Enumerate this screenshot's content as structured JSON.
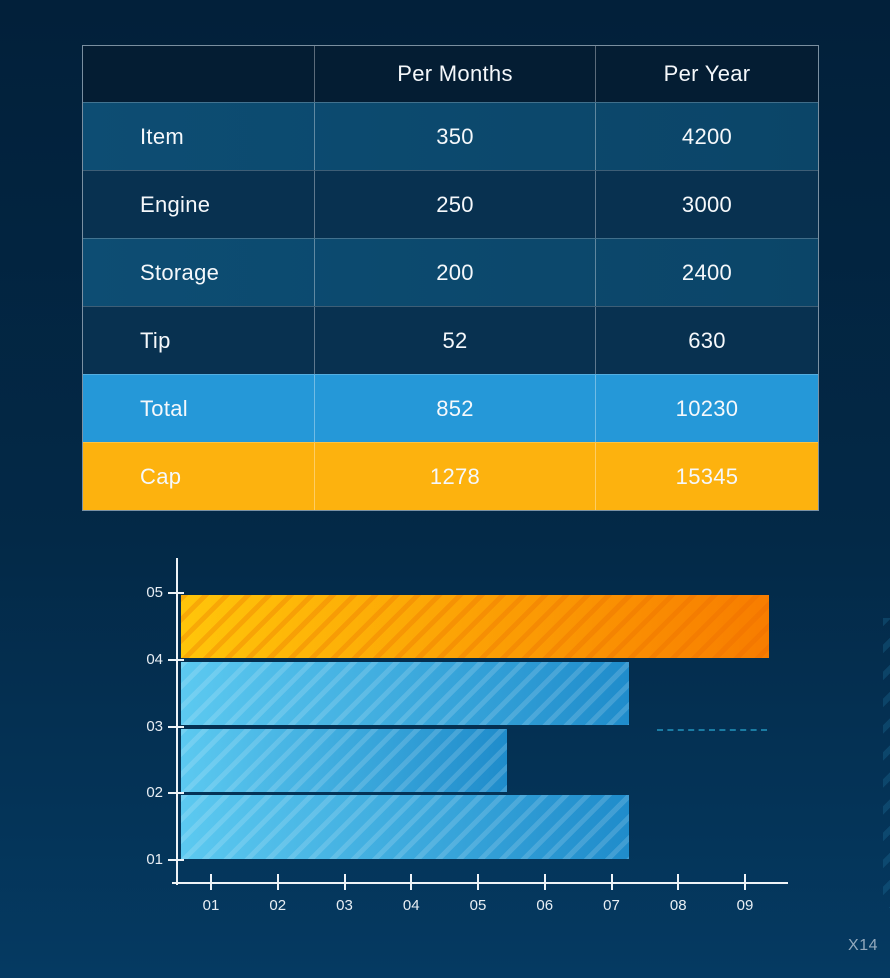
{
  "page": {
    "watermark": "X14",
    "background_top": "#02203a",
    "background_bottom": "#053a62"
  },
  "table": {
    "headers": [
      "",
      "Per Months",
      "Per Year"
    ],
    "rows": [
      {
        "label": "Item",
        "per_months": "350",
        "per_year": "4200",
        "style": "light"
      },
      {
        "label": "Engine",
        "per_months": "250",
        "per_year": "3000",
        "style": "dark"
      },
      {
        "label": "Storage",
        "per_months": "200",
        "per_year": "2400",
        "style": "light"
      },
      {
        "label": "Tip",
        "per_months": "52",
        "per_year": "630",
        "style": "dark"
      },
      {
        "label": "Total",
        "per_months": "852",
        "per_year": "10230",
        "style": "total"
      },
      {
        "label": "Cap",
        "per_months": "1278",
        "per_year": "15345",
        "style": "cap"
      }
    ],
    "colors": {
      "header_bg": "#041d33",
      "row_light": "#0c4a6e",
      "row_dark": "#083150",
      "total_bg": "#2598d8",
      "cap_bg": "#fdb20e",
      "text": "#f5f8fb"
    }
  },
  "chart_data": {
    "type": "bar",
    "orientation": "horizontal",
    "title": "",
    "xlabel": "",
    "ylabel": "",
    "x_ticks": [
      "01",
      "02",
      "03",
      "04",
      "05",
      "06",
      "07",
      "08",
      "09"
    ],
    "y_ticks": [
      "01",
      "02",
      "03",
      "04",
      "05"
    ],
    "x_range": [
      0.55,
      9.6
    ],
    "bar_start_value": 0.55,
    "grid": false,
    "legend": false,
    "bars": [
      {
        "slot": "01-02",
        "value": 7.26,
        "color": "blue"
      },
      {
        "slot": "02-03",
        "value": 5.43,
        "color": "blue"
      },
      {
        "slot": "03-04",
        "value": 7.26,
        "color": "blue"
      },
      {
        "slot": "04-05",
        "value": 9.36,
        "color": "orange"
      }
    ],
    "colors": {
      "blue_start": "#5cc9f0",
      "blue_end": "#1f8ccb",
      "orange_start": "#ffc50a",
      "orange_end": "#f87d00",
      "axis": "#eef3f7"
    },
    "annotations": [
      {
        "type": "dashed-line",
        "y_tick": "03",
        "x_from": 7.68,
        "x_to": 9.33
      }
    ]
  }
}
